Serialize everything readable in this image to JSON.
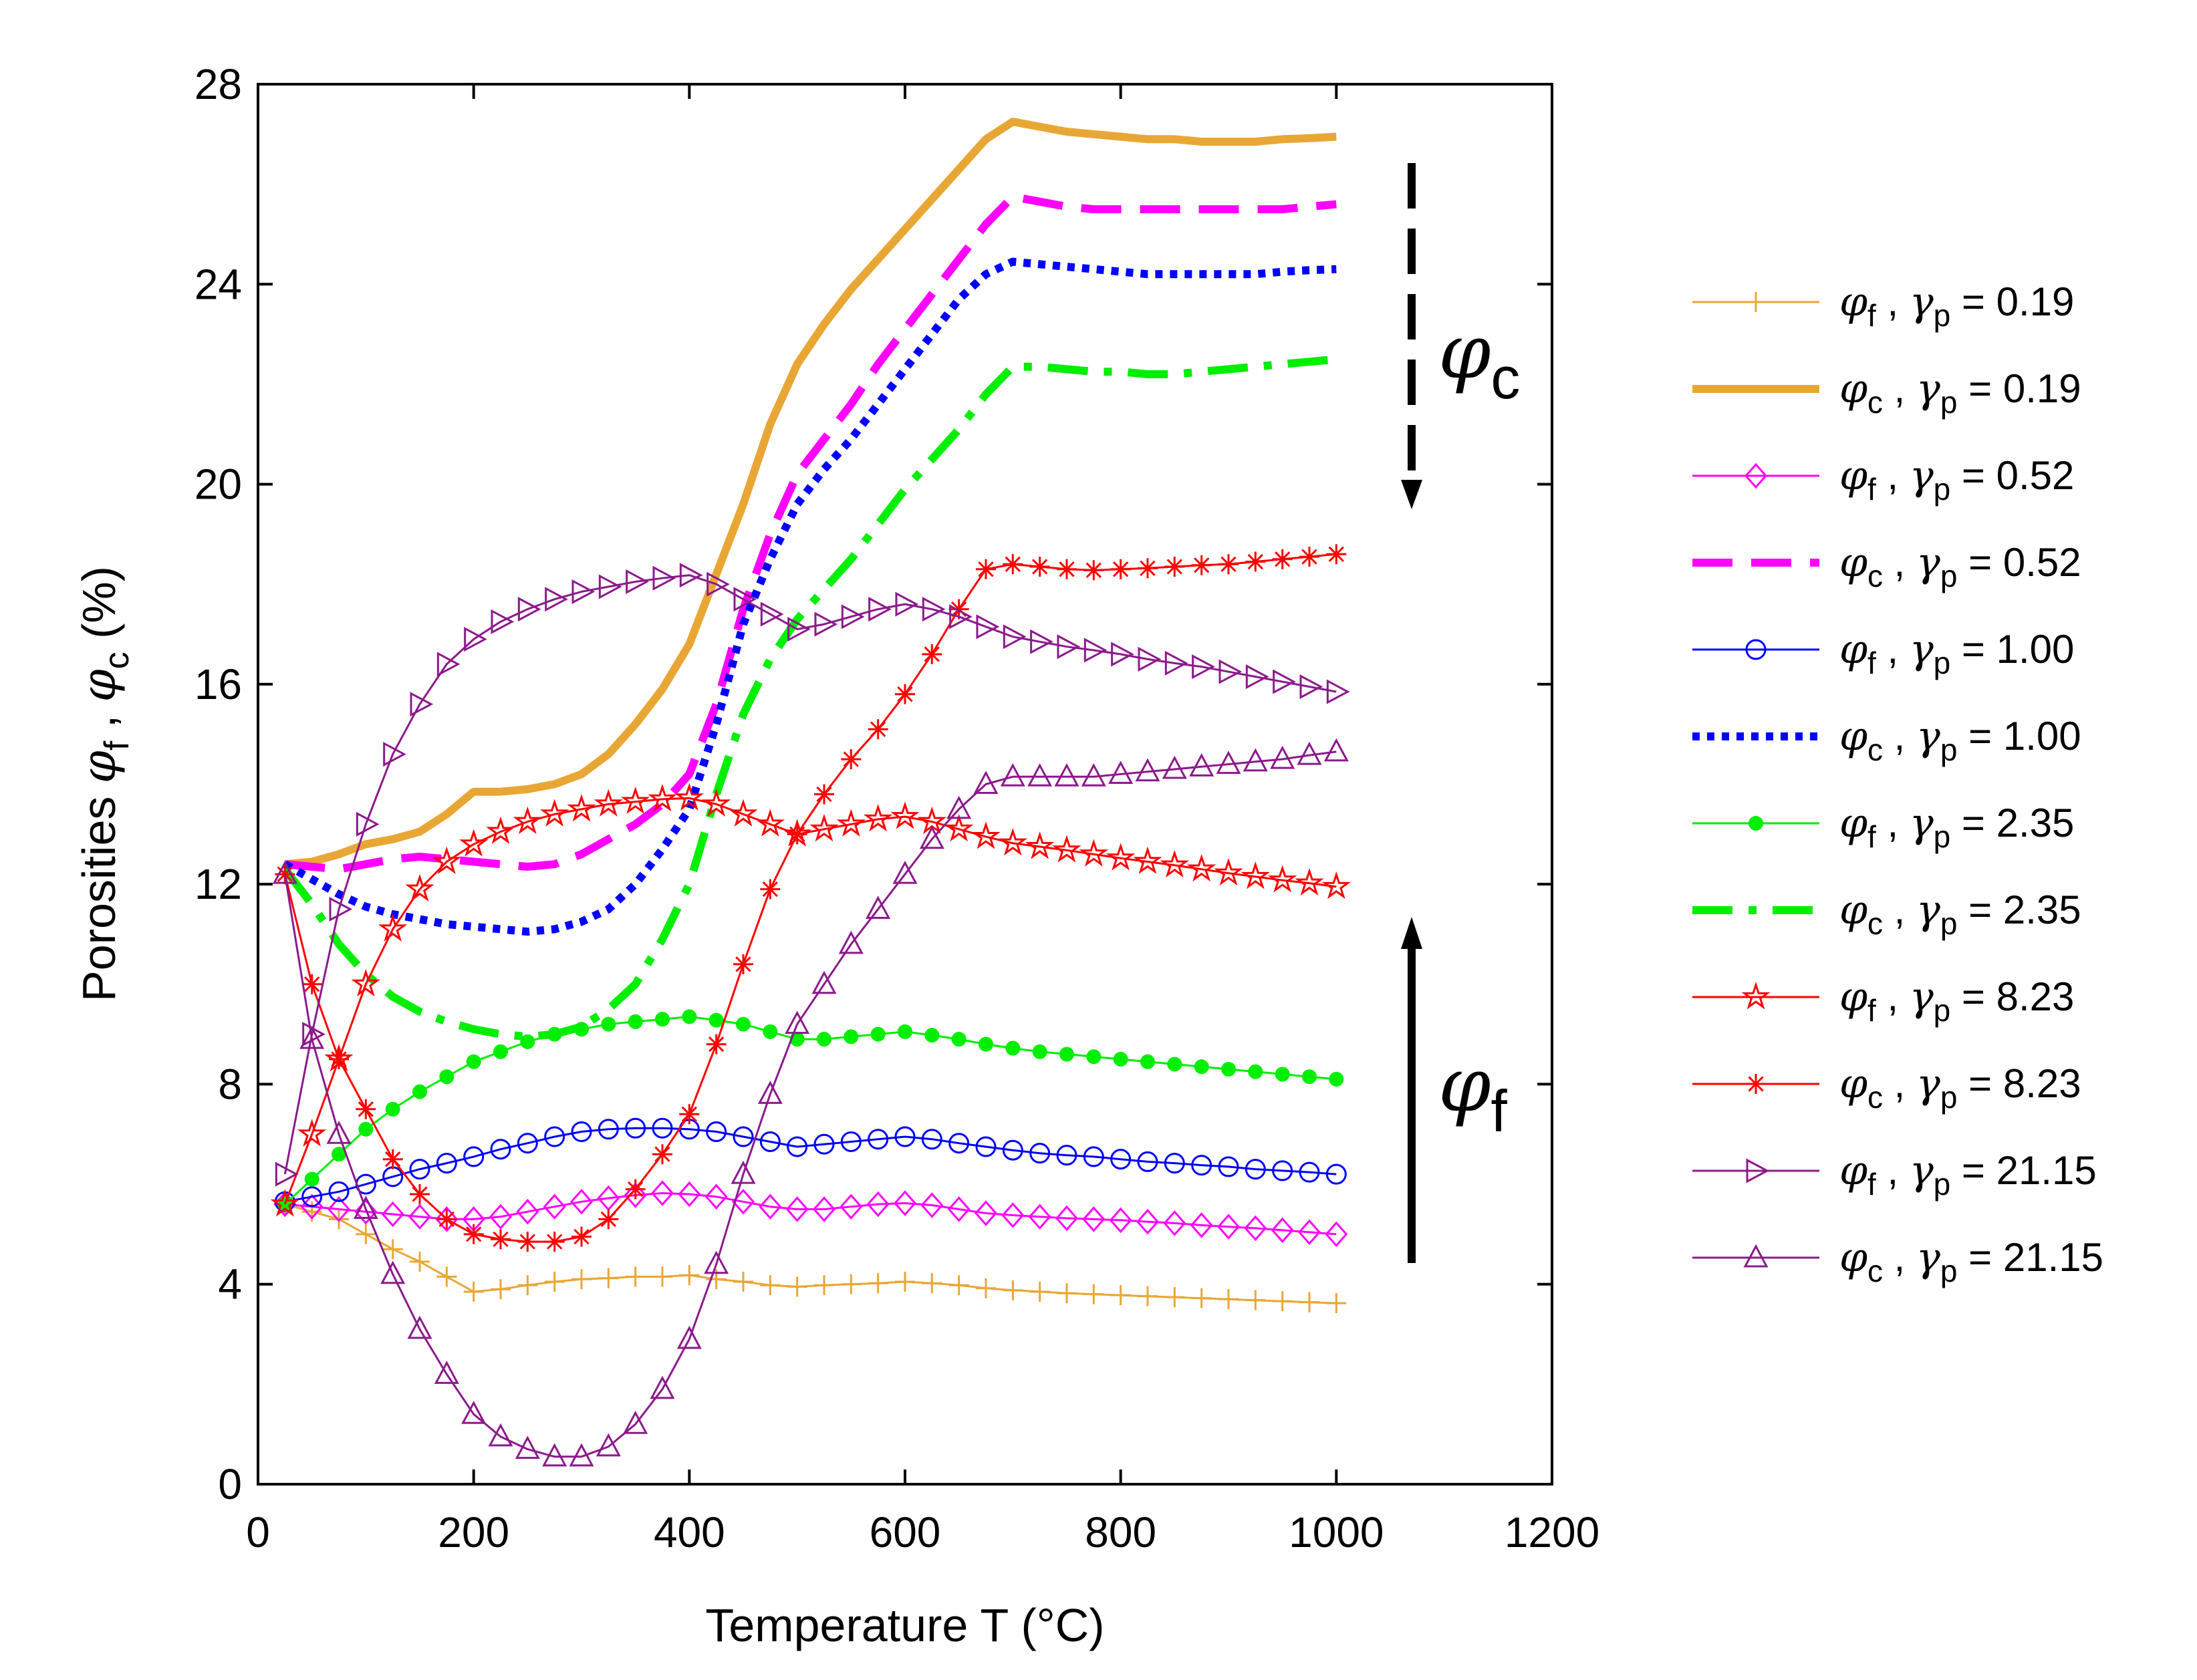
{
  "chart_data": {
    "type": "line",
    "title": "",
    "xlabel": "Temperature T (°C)",
    "ylabel": {
      "prefix": "Porosities ",
      "sym1": "φ",
      "sub1": "f",
      "sep": " , ",
      "sym2": "φ",
      "sub2": "c",
      "suffix": " (%)"
    },
    "xlim": [
      0,
      1200
    ],
    "ylim": [
      0,
      28
    ],
    "xticks": [
      0,
      200,
      400,
      600,
      800,
      1000,
      1200
    ],
    "yticks": [
      0,
      4,
      8,
      12,
      16,
      20,
      24,
      28
    ],
    "x": [
      25,
      50,
      75,
      100,
      125,
      150,
      175,
      200,
      225,
      250,
      275,
      300,
      325,
      350,
      375,
      400,
      425,
      450,
      475,
      500,
      525,
      550,
      575,
      600,
      625,
      650,
      675,
      700,
      725,
      750,
      775,
      800,
      825,
      850,
      875,
      900,
      925,
      950,
      975,
      1000
    ],
    "series": [
      {
        "name": "φf , γp = 0.19",
        "sym": "φ",
        "sub": "f",
        "gamma": "0.19",
        "color": "#E8A735",
        "style": "thin",
        "marker": "plus",
        "values": [
          5.6,
          5.45,
          5.3,
          5.0,
          4.7,
          4.45,
          4.15,
          3.85,
          3.9,
          3.98,
          4.05,
          4.1,
          4.12,
          4.15,
          4.15,
          4.18,
          4.1,
          4.05,
          3.98,
          3.95,
          3.98,
          4.0,
          4.02,
          4.05,
          4.02,
          3.98,
          3.92,
          3.88,
          3.85,
          3.82,
          3.8,
          3.78,
          3.76,
          3.74,
          3.72,
          3.7,
          3.68,
          3.66,
          3.64,
          3.62
        ]
      },
      {
        "name": "φc , γp = 0.19",
        "sym": "φ",
        "sub": "c",
        "gamma": "0.19",
        "color": "#E8A735",
        "style": "solid-thick",
        "marker": "none",
        "values": [
          12.4,
          12.45,
          12.6,
          12.8,
          12.9,
          13.05,
          13.4,
          13.85,
          13.85,
          13.9,
          14.0,
          14.2,
          14.6,
          15.2,
          15.9,
          16.8,
          18.2,
          19.6,
          21.2,
          22.4,
          23.2,
          23.9,
          24.5,
          25.1,
          25.7,
          26.3,
          26.9,
          27.25,
          27.15,
          27.05,
          27.0,
          26.95,
          26.9,
          26.9,
          26.85,
          26.85,
          26.85,
          26.9,
          26.92,
          26.95
        ]
      },
      {
        "name": "φf , γp = 0.52",
        "sym": "φ",
        "sub": "f",
        "gamma": "0.52",
        "color": "#FF00FF",
        "style": "thin",
        "marker": "diamond",
        "values": [
          5.6,
          5.55,
          5.5,
          5.45,
          5.4,
          5.35,
          5.3,
          5.3,
          5.35,
          5.45,
          5.55,
          5.65,
          5.72,
          5.78,
          5.82,
          5.8,
          5.75,
          5.65,
          5.55,
          5.5,
          5.5,
          5.55,
          5.6,
          5.62,
          5.58,
          5.5,
          5.42,
          5.38,
          5.35,
          5.32,
          5.3,
          5.28,
          5.25,
          5.22,
          5.18,
          5.15,
          5.12,
          5.08,
          5.04,
          5.0
        ]
      },
      {
        "name": "φc , γp = 0.52",
        "sym": "φ",
        "sub": "c",
        "gamma": "0.52",
        "color": "#FF00FF",
        "style": "dashed-thick",
        "marker": "none",
        "values": [
          12.4,
          12.35,
          12.3,
          12.4,
          12.5,
          12.55,
          12.5,
          12.45,
          12.4,
          12.35,
          12.4,
          12.6,
          12.9,
          13.2,
          13.6,
          14.2,
          15.6,
          17.5,
          19.0,
          20.2,
          20.9,
          21.6,
          22.4,
          23.1,
          23.8,
          24.5,
          25.2,
          25.75,
          25.65,
          25.55,
          25.5,
          25.5,
          25.5,
          25.5,
          25.5,
          25.5,
          25.5,
          25.5,
          25.55,
          25.6
        ]
      },
      {
        "name": "φf , γp = 1.00",
        "sym": "φ",
        "sub": "f",
        "gamma": "1.00",
        "color": "#0000FF",
        "style": "thin",
        "marker": "circle",
        "values": [
          5.65,
          5.75,
          5.85,
          6.0,
          6.15,
          6.3,
          6.42,
          6.55,
          6.7,
          6.82,
          6.95,
          7.05,
          7.1,
          7.12,
          7.12,
          7.1,
          7.05,
          6.95,
          6.85,
          6.75,
          6.8,
          6.85,
          6.9,
          6.95,
          6.9,
          6.82,
          6.75,
          6.68,
          6.62,
          6.58,
          6.55,
          6.5,
          6.45,
          6.42,
          6.38,
          6.35,
          6.3,
          6.27,
          6.24,
          6.2
        ]
      },
      {
        "name": "φc , γp = 1.00",
        "sym": "φ",
        "sub": "c",
        "gamma": "1.00",
        "color": "#0000FF",
        "style": "dotted-thick",
        "marker": "none",
        "values": [
          12.4,
          12.1,
          11.8,
          11.55,
          11.4,
          11.3,
          11.2,
          11.15,
          11.1,
          11.05,
          11.1,
          11.25,
          11.5,
          12.0,
          12.7,
          13.5,
          15.2,
          17.2,
          18.5,
          19.6,
          20.3,
          20.9,
          21.6,
          22.3,
          23.0,
          23.7,
          24.2,
          24.45,
          24.4,
          24.35,
          24.3,
          24.25,
          24.2,
          24.2,
          24.2,
          24.2,
          24.2,
          24.25,
          24.28,
          24.3
        ]
      },
      {
        "name": "φf , γp = 2.35",
        "sym": "φ",
        "sub": "f",
        "gamma": "2.35",
        "color": "#00EE00",
        "style": "thin",
        "marker": "dot",
        "values": [
          5.6,
          6.1,
          6.6,
          7.1,
          7.5,
          7.85,
          8.15,
          8.45,
          8.65,
          8.85,
          9.0,
          9.1,
          9.2,
          9.25,
          9.3,
          9.35,
          9.28,
          9.2,
          9.05,
          8.9,
          8.9,
          8.95,
          9.0,
          9.05,
          8.98,
          8.9,
          8.8,
          8.72,
          8.65,
          8.6,
          8.55,
          8.5,
          8.45,
          8.4,
          8.35,
          8.3,
          8.25,
          8.2,
          8.15,
          8.1
        ]
      },
      {
        "name": "φc , γp = 2.35",
        "sym": "φ",
        "sub": "c",
        "gamma": "2.35",
        "color": "#00EE00",
        "style": "dashdot-thick",
        "marker": "none",
        "values": [
          12.3,
          11.6,
          10.8,
          10.2,
          9.75,
          9.45,
          9.25,
          9.1,
          9.0,
          8.95,
          9.0,
          9.15,
          9.5,
          10.0,
          10.9,
          12.0,
          13.8,
          15.4,
          16.5,
          17.3,
          17.9,
          18.5,
          19.2,
          19.9,
          20.5,
          21.1,
          21.8,
          22.35,
          22.35,
          22.3,
          22.25,
          22.25,
          22.2,
          22.2,
          22.25,
          22.3,
          22.35,
          22.4,
          22.45,
          22.5
        ]
      },
      {
        "name": "φf , γp = 8.23",
        "sym": "φ",
        "sub": "f",
        "gamma": "8.23",
        "color": "#FF0000",
        "style": "thin",
        "marker": "star",
        "values": [
          5.6,
          7.0,
          8.5,
          10.0,
          11.1,
          11.9,
          12.45,
          12.8,
          13.05,
          13.25,
          13.4,
          13.5,
          13.6,
          13.65,
          13.7,
          13.72,
          13.6,
          13.4,
          13.2,
          13.0,
          13.1,
          13.2,
          13.3,
          13.35,
          13.25,
          13.1,
          12.95,
          12.82,
          12.75,
          12.68,
          12.6,
          12.52,
          12.45,
          12.38,
          12.3,
          12.22,
          12.15,
          12.08,
          12.02,
          11.95
        ]
      },
      {
        "name": "φc , γp = 8.23",
        "sym": "φ",
        "sub": "c",
        "gamma": "8.23",
        "color": "#FF0000",
        "style": "thin",
        "marker": "asterisk",
        "values": [
          12.2,
          10.0,
          8.5,
          7.5,
          6.5,
          5.8,
          5.3,
          5.0,
          4.9,
          4.85,
          4.85,
          4.95,
          5.3,
          5.9,
          6.6,
          7.4,
          8.8,
          10.4,
          11.9,
          13.0,
          13.8,
          14.5,
          15.1,
          15.8,
          16.6,
          17.5,
          18.3,
          18.4,
          18.35,
          18.3,
          18.28,
          18.3,
          18.32,
          18.35,
          18.38,
          18.4,
          18.45,
          18.5,
          18.55,
          18.6
        ]
      },
      {
        "name": "φf , γp = 21.15",
        "sym": "φ",
        "sub": "f",
        "gamma": "21.15",
        "color": "#8B1A8B",
        "style": "thin",
        "marker": "tri-right",
        "values": [
          6.2,
          9.0,
          11.5,
          13.2,
          14.6,
          15.6,
          16.4,
          16.9,
          17.25,
          17.5,
          17.7,
          17.85,
          17.95,
          18.05,
          18.12,
          18.18,
          18.0,
          17.7,
          17.4,
          17.1,
          17.2,
          17.35,
          17.5,
          17.6,
          17.5,
          17.35,
          17.15,
          16.95,
          16.85,
          16.75,
          16.68,
          16.6,
          16.5,
          16.42,
          16.35,
          16.25,
          16.15,
          16.05,
          15.95,
          15.85
        ]
      },
      {
        "name": "φc , γp = 21.15",
        "sym": "φ",
        "sub": "c",
        "gamma": "21.15",
        "color": "#8B1A8B",
        "style": "thin",
        "marker": "tri-up",
        "values": [
          12.2,
          8.9,
          7.0,
          5.5,
          4.2,
          3.1,
          2.2,
          1.4,
          0.95,
          0.7,
          0.55,
          0.55,
          0.75,
          1.2,
          1.9,
          2.9,
          4.4,
          6.2,
          7.8,
          9.2,
          10.0,
          10.8,
          11.5,
          12.2,
          12.9,
          13.5,
          14.0,
          14.15,
          14.15,
          14.15,
          14.15,
          14.2,
          14.25,
          14.3,
          14.35,
          14.4,
          14.45,
          14.5,
          14.58,
          14.65
        ]
      }
    ],
    "annotations": [
      {
        "sym": "φ",
        "sub": "c",
        "arrow": "down",
        "style": "dashed"
      },
      {
        "sym": "φ",
        "sub": "f",
        "arrow": "up",
        "style": "solid"
      }
    ],
    "legend_position": "right",
    "grid": false
  }
}
